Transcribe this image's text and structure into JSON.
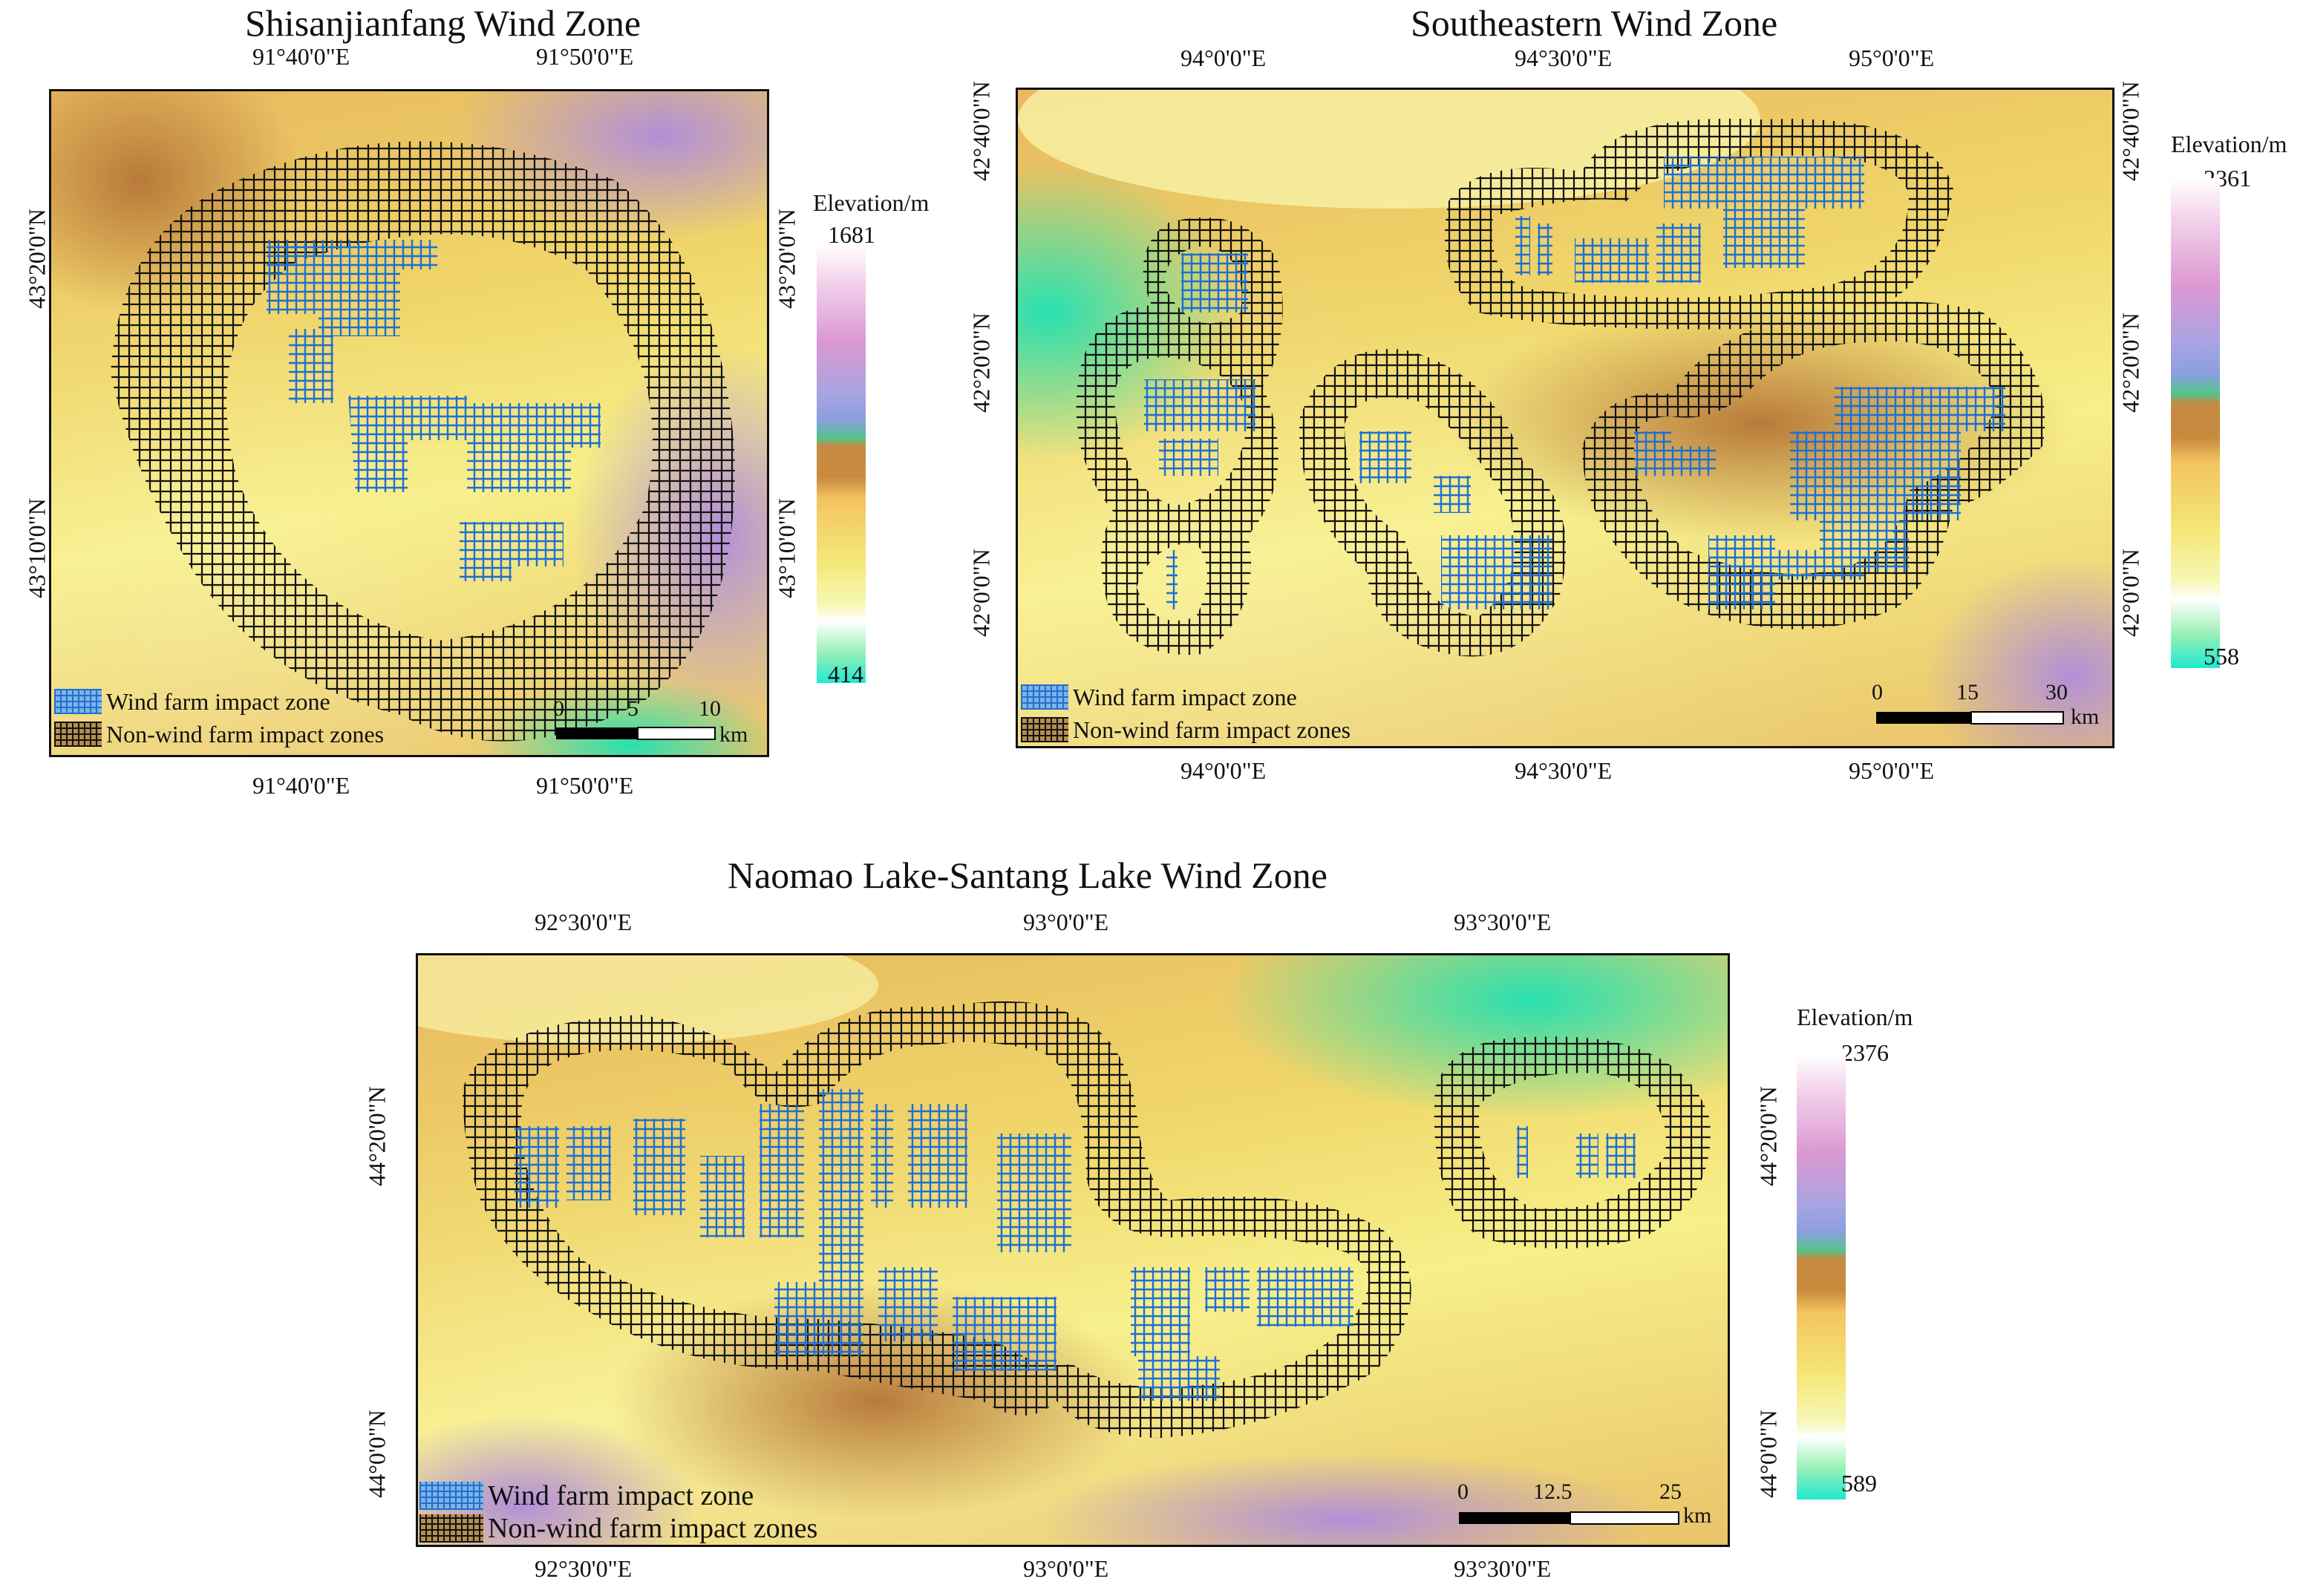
{
  "panels": [
    {
      "title": "Shisanjianfang Wind Zone",
      "lon_ticks": [
        "91°40'0\"E",
        "91°50'0\"E"
      ],
      "lat_ticks": [
        "43°20'0\"N",
        "43°10'0\"N"
      ],
      "legend": {
        "wind": "Wind farm impact zone",
        "non": "Non-wind farm impact zones"
      },
      "scale": {
        "labels": [
          "0",
          "5",
          "10"
        ],
        "unit": "km"
      },
      "colorbar": {
        "title": "Elevation/m",
        "max": "1681",
        "min": "414"
      }
    },
    {
      "title": "Southeastern Wind Zone",
      "lon_ticks": [
        "94°0'0\"E",
        "94°30'0\"E",
        "95°0'0\"E"
      ],
      "lat_ticks": [
        "42°40'0\"N",
        "42°20'0\"N",
        "42°0'0\"N"
      ],
      "legend": {
        "wind": "Wind farm impact zone",
        "non": "Non-wind farm impact zones"
      },
      "scale": {
        "labels": [
          "0",
          "15",
          "30"
        ],
        "unit": "km"
      },
      "colorbar": {
        "title": "Elevation/m",
        "max": "2361",
        "min": "558"
      }
    },
    {
      "title": "Naomao Lake-Santang Lake Wind Zone",
      "lon_ticks": [
        "92°30'0\"E",
        "93°0'0\"E",
        "93°30'0\"E"
      ],
      "lat_ticks": [
        "44°20'0\"N",
        "44°0'0\"N"
      ],
      "legend": {
        "wind": "Wind farm impact zone",
        "non": "Non-wind farm impact zones"
      },
      "scale": {
        "labels": [
          "0",
          "12.5",
          "25"
        ],
        "unit": "km"
      },
      "colorbar": {
        "title": "Elevation/m",
        "max": "2376",
        "min": "589"
      }
    }
  ],
  "colors": {
    "wind": "#1f6fd0",
    "non": "#111111",
    "frame": "#111111"
  }
}
